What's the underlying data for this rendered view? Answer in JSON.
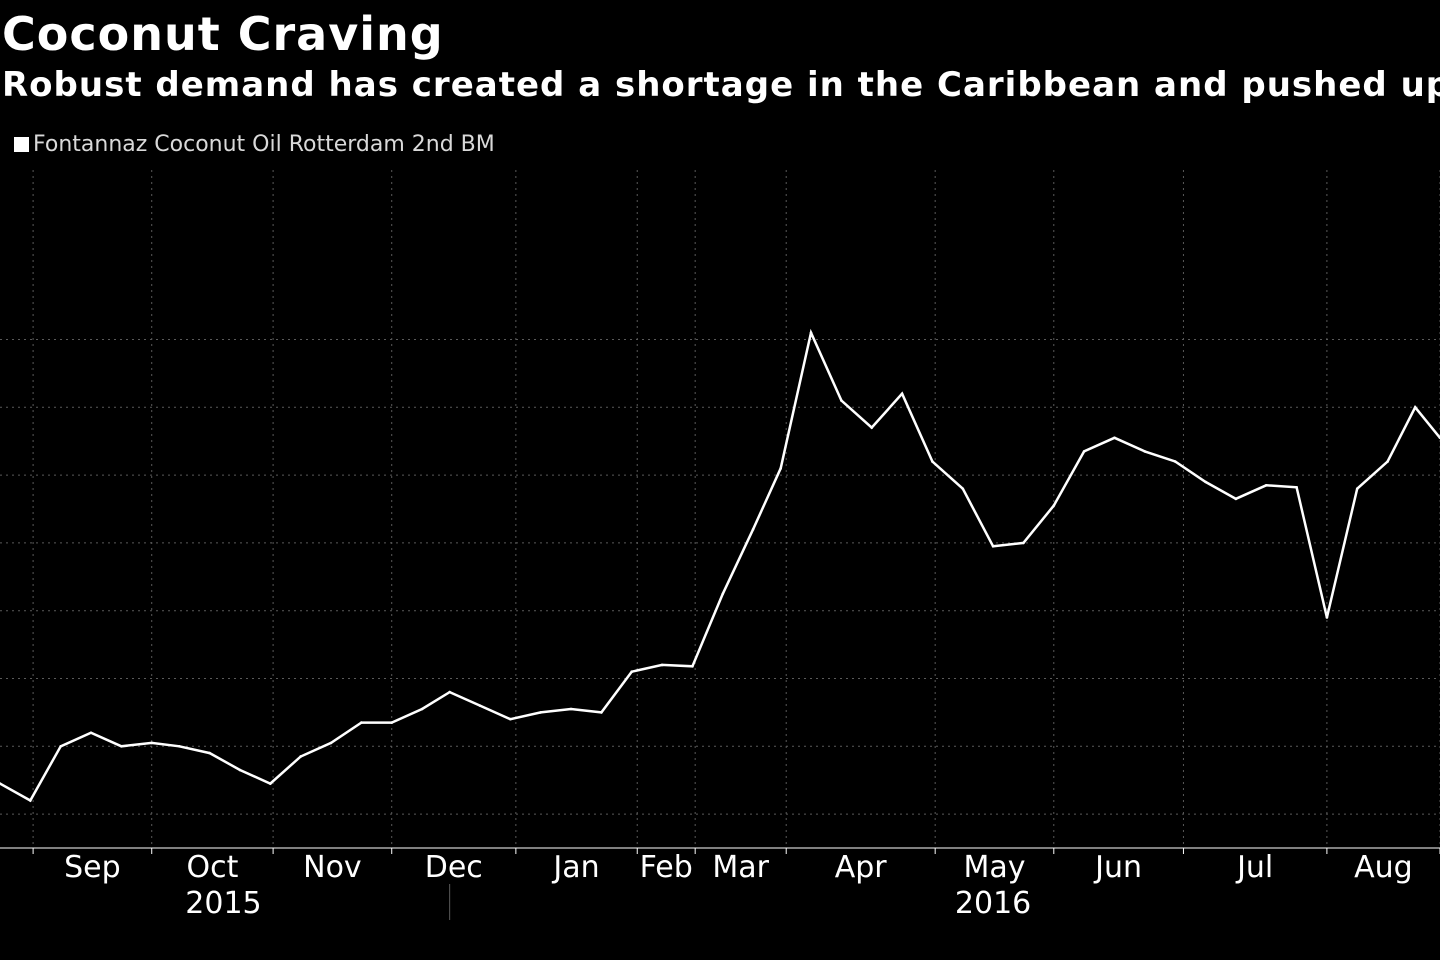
{
  "title": "Coconut Craving",
  "subtitle": "Robust demand has created a shortage in the Caribbean and pushed up",
  "legend": {
    "label": "Fontannaz Coconut Oil Rotterdam 2nd BM"
  },
  "colors": {
    "background": "#000000",
    "line": "#ffffff",
    "grid": "#5a5a5a",
    "text": "#ffffff"
  },
  "chart_data": {
    "type": "line",
    "title": "Coconut Craving",
    "subtitle": "Robust demand has created a shortage in the Caribbean and pushed up",
    "xlabel": "",
    "ylabel": "",
    "grid": true,
    "legend_position": "top-left",
    "x_unit": "weeks since Aug 24, 2015",
    "xlim": [
      0,
      52.2
    ],
    "ylim": [
      0,
      10
    ],
    "y_ticks_without_labels": [
      0.5,
      1.5,
      2.5,
      3.5,
      4.5,
      5.5,
      6.5,
      7.5
    ],
    "month_ticks": [
      {
        "label": "Sep",
        "start": 1.2,
        "end": 5.5
      },
      {
        "label": "Oct",
        "start": 5.5,
        "end": 9.9
      },
      {
        "label": "Nov",
        "start": 9.9,
        "end": 14.2
      },
      {
        "label": "Dec",
        "start": 14.2,
        "end": 18.7
      },
      {
        "label": "Jan",
        "start": 18.7,
        "end": 23.1
      },
      {
        "label": "Feb",
        "start": 23.1,
        "end": 25.2
      },
      {
        "label": "Mar",
        "start": 25.2,
        "end": 28.5
      },
      {
        "label": "Apr",
        "start": 28.5,
        "end": 33.9
      },
      {
        "label": "May",
        "start": 33.9,
        "end": 38.2
      },
      {
        "label": "Jun",
        "start": 38.2,
        "end": 42.9
      },
      {
        "label": "Jul",
        "start": 42.9,
        "end": 48.1
      },
      {
        "label": "Aug",
        "start": 48.1,
        "end": 52.2
      }
    ],
    "year_labels": [
      {
        "label": "2015",
        "position": 8.1
      },
      {
        "label": "2016",
        "position": 36.0
      }
    ],
    "year_divider": 16.3,
    "series": [
      {
        "name": "Fontannaz Coconut Oil Rotterdam 2nd BM",
        "x": [
          0,
          1.1,
          2.2,
          3.3,
          4.4,
          5.5,
          6.5,
          7.6,
          8.7,
          9.8,
          10.9,
          12.0,
          13.1,
          14.2,
          15.3,
          16.3,
          17.4,
          18.5,
          19.6,
          20.7,
          21.8,
          22.9,
          24.0,
          25.1,
          26.2,
          27.3,
          28.3,
          29.4,
          30.5,
          31.6,
          32.7,
          33.8,
          34.9,
          36.0,
          37.1,
          38.2,
          39.3,
          40.4,
          41.5,
          42.6,
          43.7,
          44.8,
          45.9,
          47.0,
          48.1,
          49.2,
          50.3,
          51.3,
          52.2
        ],
        "values": [
          0.95,
          0.7,
          1.5,
          1.7,
          1.5,
          1.55,
          1.5,
          1.4,
          1.15,
          0.95,
          1.35,
          1.55,
          1.85,
          1.85,
          2.05,
          2.3,
          2.1,
          1.9,
          2.0,
          2.05,
          2.0,
          2.6,
          2.7,
          2.68,
          3.75,
          4.7,
          5.6,
          7.6,
          6.6,
          6.2,
          6.7,
          5.7,
          5.3,
          4.45,
          4.5,
          5.05,
          5.85,
          6.05,
          5.85,
          5.7,
          5.4,
          5.15,
          5.35,
          5.32,
          3.4,
          5.3,
          5.7,
          6.5,
          6.05
        ]
      }
    ]
  }
}
